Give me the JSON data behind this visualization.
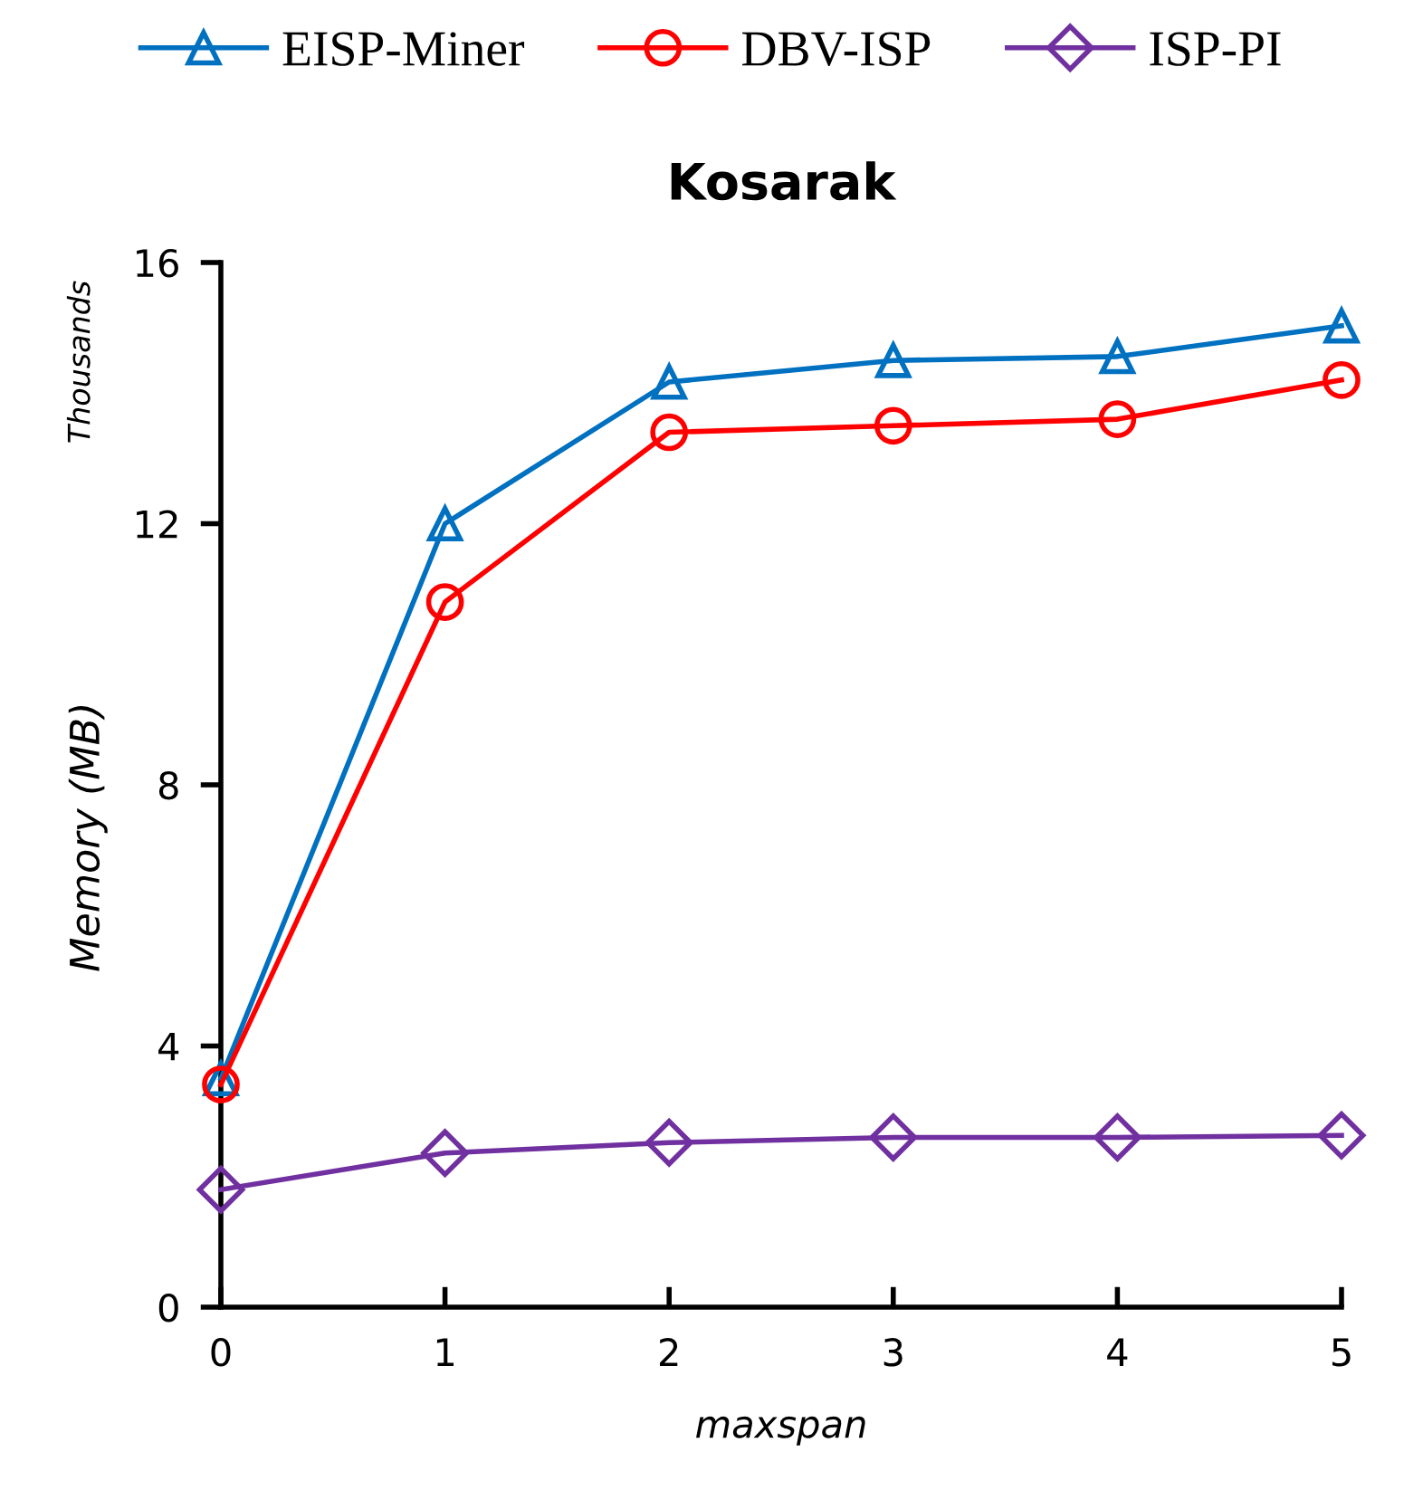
{
  "chart_data": {
    "type": "line",
    "title": "Kosarak",
    "xlabel": "maxspan",
    "ylabel": "Memory (MB)",
    "annotations": [
      "Thousands"
    ],
    "x": [
      0,
      1,
      2,
      3,
      4,
      5
    ],
    "xlim": [
      0,
      5
    ],
    "xticks": [
      0,
      1,
      2,
      3,
      4,
      5
    ],
    "ylim": [
      0,
      16
    ],
    "yticks": [
      0,
      4,
      8,
      12,
      16
    ],
    "grid": false,
    "legend": "top",
    "line_style": "solid",
    "series": [
      {
        "name": "EISP-Miner",
        "color": "#0070c0",
        "marker": "triangle",
        "values": [
          3.5,
          12.0,
          14.17,
          14.5,
          14.56,
          15.03
        ]
      },
      {
        "name": "DBV-ISP",
        "color": "#ff0000",
        "marker": "circle",
        "values": [
          3.41,
          10.8,
          13.4,
          13.5,
          13.6,
          14.2
        ]
      },
      {
        "name": "ISP-PI",
        "color": "#7030a0",
        "marker": "diamond",
        "values": [
          1.8,
          2.36,
          2.52,
          2.6,
          2.6,
          2.63
        ]
      }
    ]
  }
}
